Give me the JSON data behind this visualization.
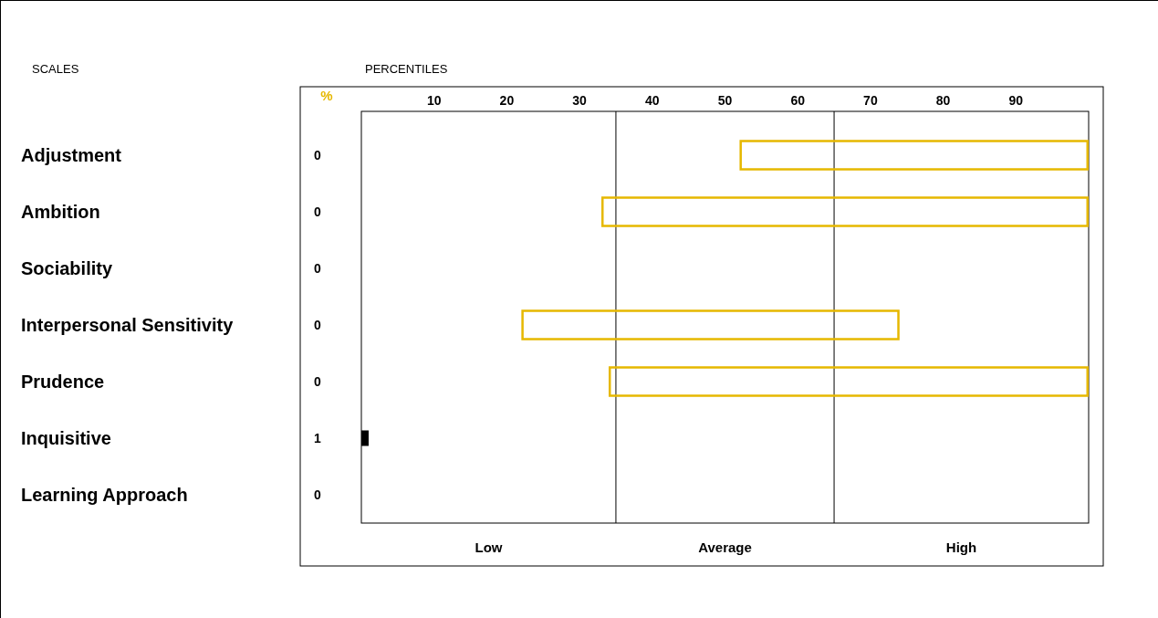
{
  "chart_data": {
    "type": "bar",
    "orientation": "horizontal",
    "ylabel": "SCALES",
    "xlabel": "PERCENTILES",
    "categories": [
      "Adjustment",
      "Ambition",
      "Sociability",
      "Interpersonal Sensitivity",
      "Prudence",
      "Inquisitive",
      "Learning Approach"
    ],
    "xlim": [
      0,
      100
    ],
    "xticks": [
      10,
      20,
      30,
      40,
      50,
      60,
      70,
      80,
      90
    ],
    "series": [
      {
        "color": "#e6b800",
        "base": [
          52,
          33,
          null,
          22,
          34,
          null,
          null
        ],
        "values": [
          48,
          67,
          null,
          52,
          66,
          null,
          null
        ]
      },
      {
        "color": "#000000",
        "values": [
          0,
          0,
          0,
          0,
          0,
          1,
          0
        ],
        "data_labels": true
      }
    ],
    "ref_lines": [
      {
        "axis": "x",
        "value": 35,
        "color": "#000000"
      },
      {
        "axis": "x",
        "value": 65,
        "color": "#000000"
      }
    ],
    "annotations": [
      "%",
      "Low",
      "Average",
      "High"
    ]
  }
}
